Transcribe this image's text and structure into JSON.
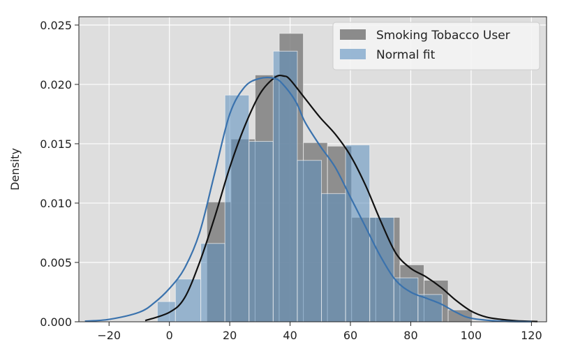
{
  "chart_data": {
    "type": "bar",
    "title": "",
    "xlabel": "",
    "ylabel": "Density",
    "xlim": [
      -30,
      125
    ],
    "ylim": [
      0,
      0.0257
    ],
    "xticks": [
      -20,
      0,
      20,
      40,
      60,
      80,
      100,
      120
    ],
    "yticks": [
      0.0,
      0.005,
      0.01,
      0.015,
      0.02,
      0.025
    ],
    "ytick_labels": [
      "0.000",
      "0.005",
      "0.010",
      "0.015",
      "0.020",
      "0.025"
    ],
    "grid": true,
    "legend_position": "top-right",
    "series": [
      {
        "name": "Smoking Tobacco User",
        "kind": "histogram",
        "color": "#808080",
        "bins": [
          {
            "x0": 12.4,
            "x1": 20.4,
            "density": 0.0101
          },
          {
            "x0": 20.4,
            "x1": 28.4,
            "density": 0.0154
          },
          {
            "x0": 28.4,
            "x1": 36.4,
            "density": 0.0208
          },
          {
            "x0": 36.4,
            "x1": 44.4,
            "density": 0.0243
          },
          {
            "x0": 44.4,
            "x1": 52.4,
            "density": 0.0151
          },
          {
            "x0": 52.4,
            "x1": 60.4,
            "density": 0.0148
          },
          {
            "x0": 60.4,
            "x1": 68.4,
            "density": 0.0088
          },
          {
            "x0": 68.4,
            "x1": 76.4,
            "density": 0.0088
          },
          {
            "x0": 76.4,
            "x1": 84.4,
            "density": 0.0048
          },
          {
            "x0": 84.4,
            "x1": 92.4,
            "density": 0.0035
          },
          {
            "x0": 92.4,
            "x1": 100.4,
            "density": 0.001
          }
        ],
        "kde": {
          "color": "#111111",
          "x": [
            -8,
            0,
            5,
            10,
            15,
            20,
            25,
            30,
            35,
            38,
            40,
            45,
            50,
            55,
            60,
            65,
            70,
            75,
            80,
            85,
            90,
            95,
            100,
            105,
            110,
            115,
            122
          ],
          "y": [
            0.0001,
            0.0008,
            0.002,
            0.005,
            0.0088,
            0.013,
            0.0165,
            0.0192,
            0.0206,
            0.0207,
            0.0204,
            0.0188,
            0.0172,
            0.0158,
            0.014,
            0.0115,
            0.0085,
            0.0058,
            0.0045,
            0.0038,
            0.0029,
            0.0018,
            0.0009,
            0.0004,
            0.0002,
            8e-05,
            2e-05
          ]
        }
      },
      {
        "name": "Normal fit",
        "kind": "histogram",
        "color": "#5b8fbf",
        "bins": [
          {
            "x0": -4,
            "x1": 2,
            "density": 0.0017
          },
          {
            "x0": 2,
            "x1": 10.4,
            "density": 0.0036
          },
          {
            "x0": 10.4,
            "x1": 18.4,
            "density": 0.0066
          },
          {
            "x0": 18.4,
            "x1": 26.4,
            "density": 0.0191
          },
          {
            "x0": 26.4,
            "x1": 34.4,
            "density": 0.0152
          },
          {
            "x0": 34.4,
            "x1": 42.4,
            "density": 0.0228
          },
          {
            "x0": 42.4,
            "x1": 50.4,
            "density": 0.0136
          },
          {
            "x0": 50.4,
            "x1": 58.4,
            "density": 0.0108
          },
          {
            "x0": 58.4,
            "x1": 66.4,
            "density": 0.0149
          },
          {
            "x0": 66.4,
            "x1": 74.4,
            "density": 0.0088
          },
          {
            "x0": 74.4,
            "x1": 82.4,
            "density": 0.0037
          },
          {
            "x0": 82.4,
            "x1": 90.4,
            "density": 0.0023
          }
        ],
        "kde": {
          "color": "#3a72ad",
          "x": [
            -28,
            -20,
            -10,
            -5,
            0,
            5,
            10,
            15,
            20,
            25,
            30,
            35,
            38,
            42,
            45,
            50,
            55,
            60,
            65,
            70,
            75,
            80,
            85,
            90,
            95,
            100,
            110,
            120
          ],
          "y": [
            5e-05,
            0.0002,
            0.0008,
            0.0016,
            0.0028,
            0.0045,
            0.0075,
            0.0125,
            0.0175,
            0.0198,
            0.0205,
            0.0205,
            0.0199,
            0.0185,
            0.0168,
            0.0148,
            0.013,
            0.0105,
            0.008,
            0.0055,
            0.0035,
            0.0025,
            0.002,
            0.0015,
            0.0008,
            0.0003,
            5e-05,
            1e-05
          ]
        }
      }
    ]
  }
}
